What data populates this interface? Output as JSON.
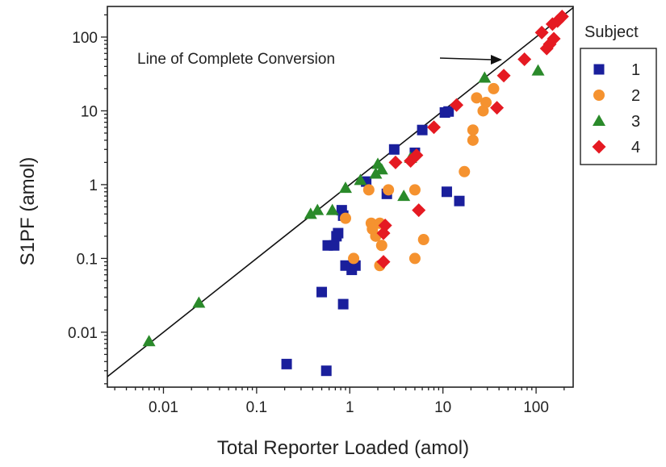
{
  "chart_data": {
    "type": "scatter",
    "title": "",
    "xlabel": "Total Reporter Loaded (amol)",
    "ylabel": "S1PF (amol)",
    "xscale": "log",
    "yscale": "log",
    "xlim": [
      0.0025,
      250
    ],
    "ylim": [
      0.0018,
      260
    ],
    "xticks": [
      {
        "value": 0.01,
        "label": "0.01"
      },
      {
        "value": 0.1,
        "label": "0.1"
      },
      {
        "value": 1,
        "label": "1"
      },
      {
        "value": 10,
        "label": "10"
      },
      {
        "value": 100,
        "label": "100"
      }
    ],
    "yticks": [
      {
        "value": 0.01,
        "label": "0.01"
      },
      {
        "value": 0.1,
        "label": "0.1"
      },
      {
        "value": 1,
        "label": "1"
      },
      {
        "value": 10,
        "label": "10"
      },
      {
        "value": 100,
        "label": "100"
      }
    ],
    "grid": false,
    "legend": {
      "title": "Subject",
      "position": "right"
    },
    "reference_line": {
      "label": "Line of Complete Conversion",
      "slope": 1
    },
    "series": [
      {
        "name": "1",
        "marker": "square",
        "color": "#1a1f9c",
        "points": [
          [
            0.21,
            0.0037
          ],
          [
            0.56,
            0.003
          ],
          [
            0.5,
            0.035
          ],
          [
            0.85,
            0.024
          ],
          [
            0.58,
            0.15
          ],
          [
            0.68,
            0.15
          ],
          [
            0.72,
            0.2
          ],
          [
            0.75,
            0.22
          ],
          [
            0.85,
            0.38
          ],
          [
            0.9,
            0.08
          ],
          [
            1.05,
            0.07
          ],
          [
            1.15,
            0.08
          ],
          [
            0.82,
            0.45
          ],
          [
            1.5,
            1.1
          ],
          [
            2.5,
            0.75
          ],
          [
            3.0,
            3.0
          ],
          [
            5.0,
            2.7
          ],
          [
            6.0,
            5.5
          ],
          [
            10.5,
            9.5
          ],
          [
            11.5,
            9.8
          ],
          [
            11.0,
            0.8
          ],
          [
            15.0,
            0.6
          ]
        ]
      },
      {
        "name": "2",
        "marker": "circle",
        "color": "#f5922f",
        "points": [
          [
            0.9,
            0.35
          ],
          [
            1.1,
            0.1
          ],
          [
            1.6,
            0.85
          ],
          [
            1.7,
            0.3
          ],
          [
            1.75,
            0.25
          ],
          [
            1.9,
            0.2
          ],
          [
            2.1,
            0.3
          ],
          [
            2.2,
            0.15
          ],
          [
            2.1,
            0.08
          ],
          [
            2.6,
            0.85
          ],
          [
            5.0,
            0.85
          ],
          [
            5.0,
            0.1
          ],
          [
            6.2,
            0.18
          ],
          [
            17.0,
            1.5
          ],
          [
            21.0,
            4.0
          ],
          [
            21.0,
            5.5
          ],
          [
            23.0,
            15.0
          ],
          [
            27.0,
            10.0
          ],
          [
            29.0,
            13.0
          ],
          [
            35.0,
            20.0
          ]
        ]
      },
      {
        "name": "3",
        "marker": "triangle",
        "color": "#2a8a2a",
        "points": [
          [
            0.007,
            0.0075
          ],
          [
            0.024,
            0.025
          ],
          [
            0.38,
            0.4
          ],
          [
            0.45,
            0.45
          ],
          [
            0.65,
            0.45
          ],
          [
            0.9,
            0.9
          ],
          [
            1.3,
            1.15
          ],
          [
            1.9,
            1.4
          ],
          [
            2.0,
            1.9
          ],
          [
            2.2,
            1.6
          ],
          [
            3.8,
            0.7
          ],
          [
            4.5,
            2.3
          ],
          [
            28.0,
            28.0
          ],
          [
            105.0,
            35.0
          ]
        ]
      },
      {
        "name": "4",
        "marker": "diamond",
        "color": "#e51a22",
        "points": [
          [
            2.3,
            0.09
          ],
          [
            2.3,
            0.22
          ],
          [
            2.4,
            0.28
          ],
          [
            3.1,
            2.0
          ],
          [
            4.5,
            2.1
          ],
          [
            5.2,
            2.5
          ],
          [
            5.5,
            0.45
          ],
          [
            8.0,
            6.0
          ],
          [
            14.0,
            12.0
          ],
          [
            38.0,
            11.0
          ],
          [
            45.0,
            30.0
          ],
          [
            75.0,
            50.0
          ],
          [
            115.0,
            115.0
          ],
          [
            130.0,
            70.0
          ],
          [
            140.0,
            80.0
          ],
          [
            155.0,
            95.0
          ],
          [
            150.0,
            150.0
          ],
          [
            170.0,
            165.0
          ],
          [
            190.0,
            190.0
          ]
        ]
      }
    ]
  }
}
